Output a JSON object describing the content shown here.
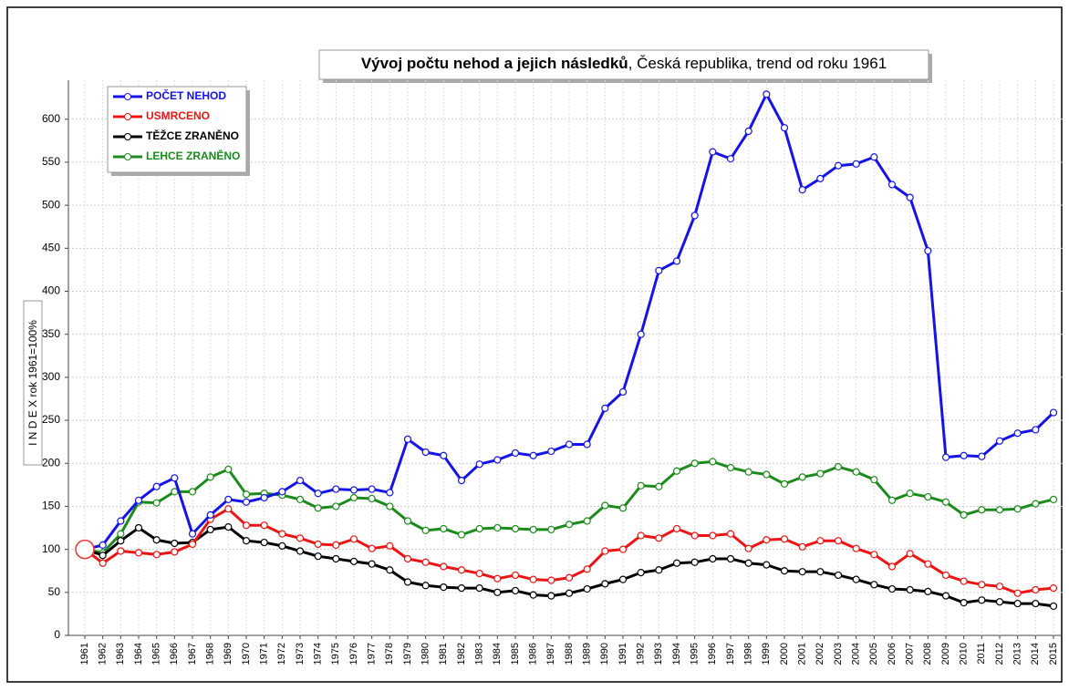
{
  "chart_data": {
    "type": "line",
    "title": "Vývoj počtu nehod a jejich následků",
    "subtitle": ", Česká republika, trend od roku 1961",
    "y_label": "I N D E X rok 1961=100%",
    "categories": [
      "1961",
      "1962",
      "1963",
      "1964",
      "1965",
      "1966",
      "1967",
      "1968",
      "1969",
      "1970",
      "1971",
      "1972",
      "1973",
      "1974",
      "1975",
      "1976",
      "1977",
      "1978",
      "1979",
      "1980",
      "1981",
      "1982",
      "1983",
      "1984",
      "1985",
      "1986",
      "1987",
      "1988",
      "1989",
      "1990",
      "1991",
      "1992",
      "1993",
      "1994",
      "1995",
      "1996",
      "1997",
      "1998",
      "1999",
      "2000",
      "2001",
      "2002",
      "2003",
      "2004",
      "2005",
      "2006",
      "2007",
      "2008",
      "2009",
      "2010",
      "2011",
      "2012",
      "2013",
      "2014",
      "2015"
    ],
    "series": [
      {
        "name": "POČET NEHOD",
        "color": "#1414e6",
        "values": [
          100,
          105,
          133,
          157,
          173,
          183,
          118,
          140,
          158,
          155,
          160,
          167,
          180,
          165,
          170,
          169,
          170,
          166,
          228,
          213,
          209,
          180,
          199,
          204,
          212,
          209,
          214,
          222,
          222,
          264,
          283,
          350,
          424,
          435,
          488,
          562,
          554,
          586,
          629,
          590,
          518,
          531,
          546,
          548,
          556,
          524,
          509,
          447,
          207,
          209,
          208,
          226,
          235,
          239,
          259
        ]
      },
      {
        "name": "USMRCENO",
        "color": "#ec1414",
        "values": [
          100,
          84,
          98,
          96,
          94,
          97,
          106,
          135,
          147,
          128,
          128,
          118,
          113,
          106,
          105,
          112,
          101,
          104,
          89,
          85,
          80,
          76,
          72,
          66,
          70,
          65,
          64,
          67,
          77,
          98,
          100,
          116,
          113,
          124,
          116,
          116,
          118,
          101,
          111,
          112,
          103,
          110,
          110,
          101,
          94,
          80,
          95,
          83,
          70,
          63,
          59,
          57,
          49,
          53,
          55
        ]
      },
      {
        "name": "TĚŽCE ZRANĚNO",
        "color": "#000000",
        "values": [
          100,
          93,
          110,
          125,
          111,
          107,
          108,
          123,
          126,
          110,
          108,
          104,
          98,
          92,
          89,
          86,
          83,
          76,
          62,
          58,
          56,
          55,
          55,
          50,
          52,
          47,
          46,
          49,
          54,
          60,
          65,
          73,
          76,
          84,
          85,
          89,
          89,
          84,
          82,
          75,
          74,
          74,
          70,
          65,
          59,
          54,
          53,
          51,
          46,
          38,
          41,
          39,
          37,
          37,
          34
        ]
      },
      {
        "name": "LEHCE ZRANĚNO",
        "color": "#1c8a1c",
        "values": [
          100,
          96,
          118,
          155,
          154,
          167,
          167,
          184,
          193,
          164,
          165,
          163,
          158,
          148,
          150,
          160,
          159,
          150,
          133,
          122,
          124,
          117,
          124,
          125,
          124,
          123,
          123,
          129,
          133,
          151,
          148,
          174,
          173,
          191,
          200,
          202,
          195,
          190,
          187,
          176,
          184,
          188,
          196,
          190,
          181,
          157,
          165,
          161,
          155,
          140,
          146,
          146,
          147,
          153,
          158
        ]
      }
    ],
    "ylim": [
      0,
      640
    ],
    "yticks": [
      0,
      50,
      100,
      150,
      200,
      250,
      300,
      350,
      400,
      450,
      500,
      550,
      600
    ],
    "grid": true,
    "legend": "upper left"
  }
}
